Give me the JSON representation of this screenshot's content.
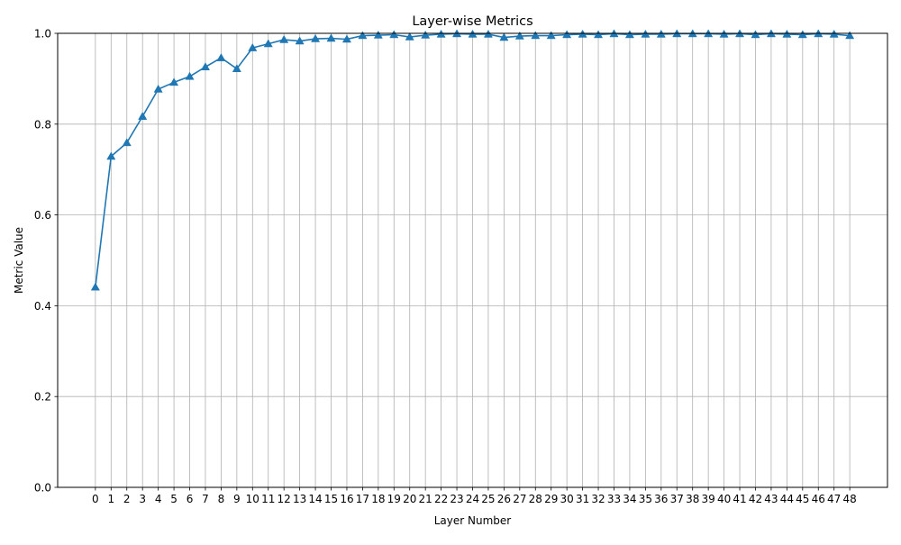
{
  "chart_data": {
    "type": "line",
    "title": "Layer-wise Metrics",
    "xlabel": "Layer Number",
    "ylabel": "Metric Value",
    "x": [
      0,
      1,
      2,
      3,
      4,
      5,
      6,
      7,
      8,
      9,
      10,
      11,
      12,
      13,
      14,
      15,
      16,
      17,
      18,
      19,
      20,
      21,
      22,
      23,
      24,
      25,
      26,
      27,
      28,
      29,
      30,
      31,
      32,
      33,
      34,
      35,
      36,
      37,
      38,
      39,
      40,
      41,
      42,
      43,
      44,
      45,
      46,
      47,
      48
    ],
    "series": [
      {
        "values": [
          0.441,
          0.729,
          0.759,
          0.817,
          0.877,
          0.892,
          0.905,
          0.926,
          0.946,
          0.922,
          0.968,
          0.977,
          0.986,
          0.983,
          0.988,
          0.989,
          0.987,
          0.995,
          0.996,
          0.997,
          0.992,
          0.996,
          0.998,
          0.999,
          0.998,
          0.998,
          0.991,
          0.994,
          0.995,
          0.995,
          0.997,
          0.998,
          0.997,
          0.999,
          0.997,
          0.998,
          0.998,
          0.999,
          0.999,
          0.999,
          0.998,
          0.999,
          0.997,
          0.999,
          0.998,
          0.997,
          0.999,
          0.998,
          0.995
        ],
        "color": "#1f77b4",
        "marker": "triangle-up"
      }
    ],
    "ylim": [
      0.0,
      1.0
    ],
    "yticks": [
      "0.0",
      "0.2",
      "0.4",
      "0.6",
      "0.8",
      "1.0"
    ],
    "xticks": [
      "0",
      "1",
      "2",
      "3",
      "4",
      "5",
      "6",
      "7",
      "8",
      "9",
      "10",
      "11",
      "12",
      "13",
      "14",
      "15",
      "16",
      "17",
      "18",
      "19",
      "20",
      "21",
      "22",
      "23",
      "24",
      "25",
      "26",
      "27",
      "28",
      "29",
      "30",
      "31",
      "32",
      "33",
      "34",
      "35",
      "36",
      "37",
      "38",
      "39",
      "40",
      "41",
      "42",
      "43",
      "44",
      "45",
      "46",
      "47",
      "48"
    ],
    "grid": true,
    "grid_color": "#b0b0b0"
  }
}
